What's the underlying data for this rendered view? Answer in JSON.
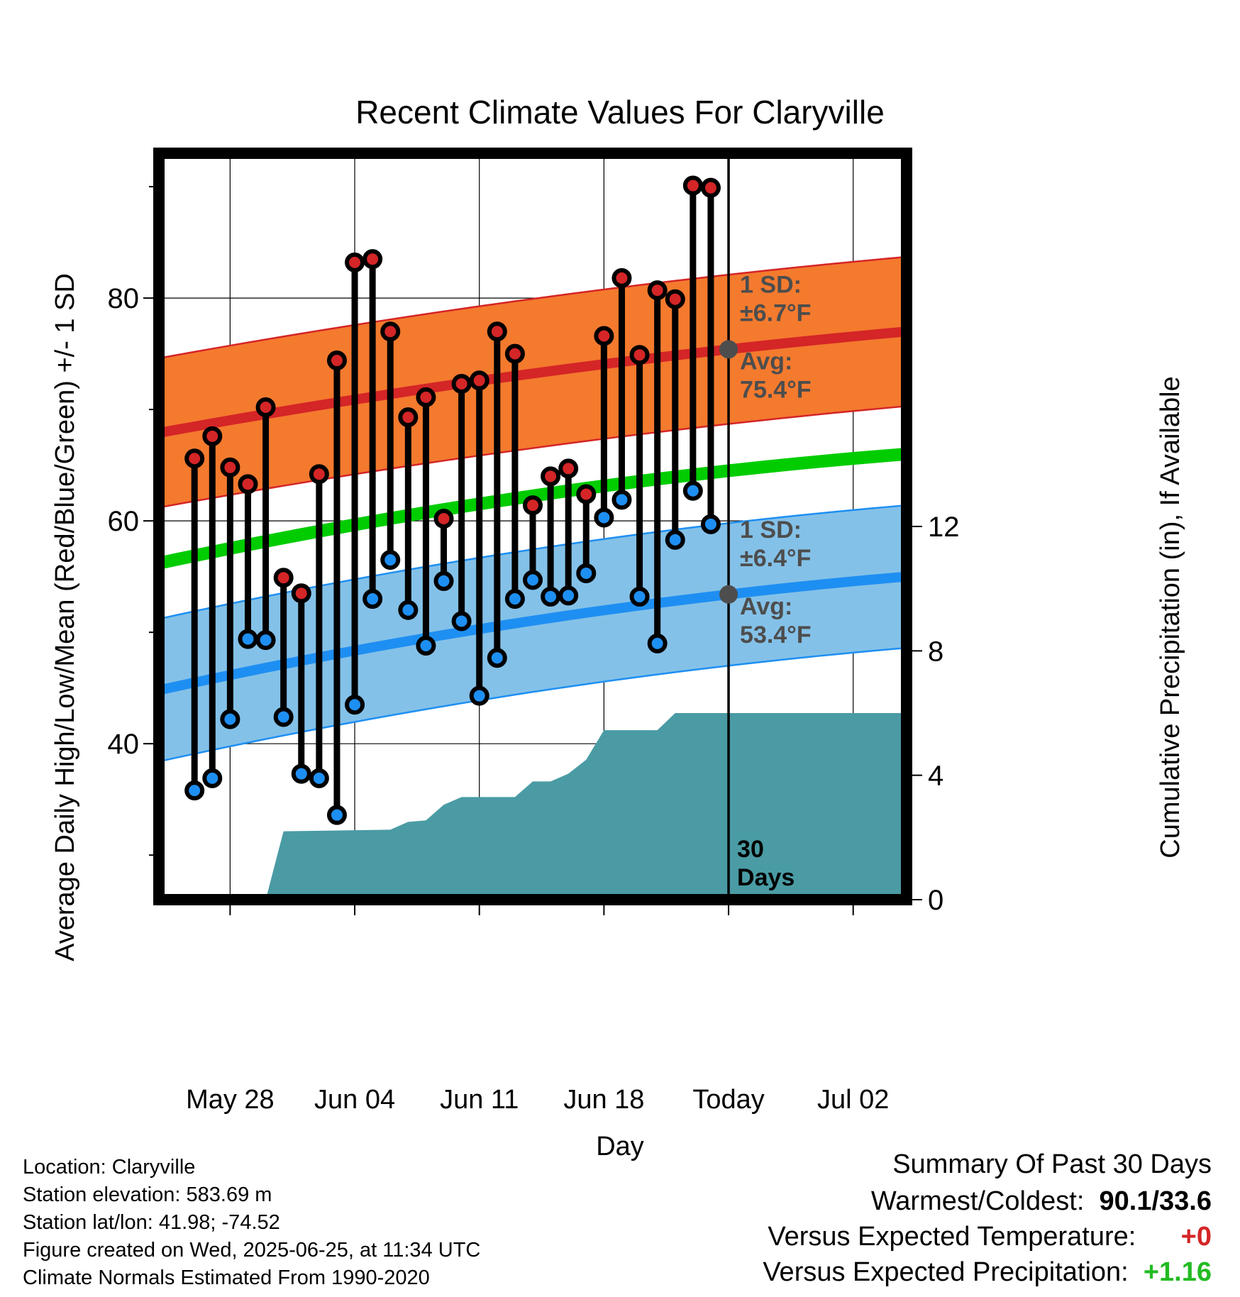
{
  "chart_data": {
    "type": "line",
    "title": "Recent Climate Values For Claryville",
    "xlabel": "Day",
    "ylabel": "Average Daily High/Low/Mean (Red/Blue/Green) +/- 1 SD",
    "y2label": "Cumulative Precipitation (in), If Available",
    "x_tick_labels": [
      "May 28",
      "Jun 04",
      "Jun 11",
      "Jun 18",
      "Today",
      "Jul 02"
    ],
    "x_range_dates": [
      "2025-05-24",
      "2025-07-05"
    ],
    "today": "2025-06-25",
    "y_ticks": [
      40,
      60,
      80
    ],
    "ylim": [
      26,
      93
    ],
    "y2_ticks": [
      0,
      4,
      8,
      12
    ],
    "y2lim": [
      0,
      24
    ],
    "days": [
      "2025-05-26",
      "2025-05-27",
      "2025-05-28",
      "2025-05-29",
      "2025-05-30",
      "2025-05-31",
      "2025-06-01",
      "2025-06-02",
      "2025-06-03",
      "2025-06-04",
      "2025-06-05",
      "2025-06-06",
      "2025-06-07",
      "2025-06-08",
      "2025-06-09",
      "2025-06-10",
      "2025-06-11",
      "2025-06-12",
      "2025-06-13",
      "2025-06-14",
      "2025-06-15",
      "2025-06-16",
      "2025-06-17",
      "2025-06-18",
      "2025-06-19",
      "2025-06-20",
      "2025-06-21",
      "2025-06-22",
      "2025-06-23",
      "2025-06-24"
    ],
    "daily_high": [
      65.6,
      67.6,
      64.8,
      63.3,
      70.2,
      54.9,
      53.5,
      64.2,
      74.4,
      83.2,
      83.5,
      77.0,
      69.3,
      71.1,
      60.2,
      72.3,
      72.6,
      77.0,
      75.0,
      61.4,
      64.0,
      64.7,
      62.4,
      76.6,
      81.8,
      74.9,
      80.7,
      79.9,
      90.1,
      89.9
    ],
    "daily_low": [
      35.8,
      36.9,
      42.2,
      49.4,
      49.3,
      42.4,
      37.3,
      36.9,
      33.6,
      43.5,
      53.0,
      56.5,
      52.0,
      48.8,
      54.6,
      51.0,
      44.3,
      47.7,
      53.0,
      54.7,
      53.2,
      53.3,
      55.3,
      60.3,
      61.9,
      53.2,
      49.0,
      58.3,
      62.7,
      59.7
    ],
    "normals_dates": [
      "2025-05-24",
      "2025-06-25",
      "2025-07-05"
    ],
    "normal_high": [
      67.9,
      75.4,
      77.0
    ],
    "normal_high_sd": 6.7,
    "normal_low": [
      44.8,
      53.4,
      55.0
    ],
    "normal_low_sd": 6.4,
    "normal_mean": [
      56.2,
      64.5,
      66.0
    ],
    "precip_cumulative_dates": [
      "2025-05-30",
      "2025-05-31",
      "2025-06-06",
      "2025-06-07",
      "2025-06-08",
      "2025-06-09",
      "2025-06-10",
      "2025-06-13",
      "2025-06-14",
      "2025-06-15",
      "2025-06-16",
      "2025-06-17",
      "2025-06-18",
      "2025-06-21",
      "2025-06-22",
      "2025-07-05"
    ],
    "precip_cumulative": [
      0.0,
      2.2,
      2.25,
      2.5,
      2.55,
      3.05,
      3.3,
      3.3,
      3.8,
      3.8,
      4.05,
      4.5,
      5.45,
      5.45,
      6.0,
      6.0
    ],
    "annotations": {
      "high_sd_label": "1 SD:",
      "high_sd_value": "±6.7°F",
      "high_avg_label": "Avg:",
      "high_avg_value": "75.4°F",
      "low_sd_label": "1 SD:",
      "low_sd_value": "±6.4°F",
      "low_avg_label": "Avg:",
      "low_avg_value": "53.4°F",
      "window_line1": "30",
      "window_line2": "Days"
    },
    "colors": {
      "high_band": "#f47a2e",
      "high_line": "#d42527",
      "low_band": "#84c1e8",
      "low_line": "#1e8ff2",
      "mean_line": "#00cc00",
      "precip": "#4a9ba4",
      "high_dot": "#d42527",
      "low_dot": "#1e8ff2",
      "annotation": "#4d4d4d"
    }
  },
  "info": {
    "location": "Location: Claryville",
    "elevation": "Station elevation: 583.69 m",
    "latlon": "Station lat/lon: 41.98; -74.52",
    "created": "Figure created on Wed, 2025-06-25, at 11:34 UTC",
    "normals": "Climate Normals Estimated From 1990-2020"
  },
  "summary": {
    "title": "Summary Of Past 30 Days",
    "warmest_coldest_label": "Warmest/Coldest:",
    "warmest_coldest_value": "90.1/33.6",
    "temp_label": "Versus Expected Temperature:",
    "temp_value": "+0",
    "temp_color": "#d42527",
    "precip_label": "Versus Expected Precipitation:",
    "precip_value": "+1.16",
    "precip_color": "#22bb22"
  }
}
